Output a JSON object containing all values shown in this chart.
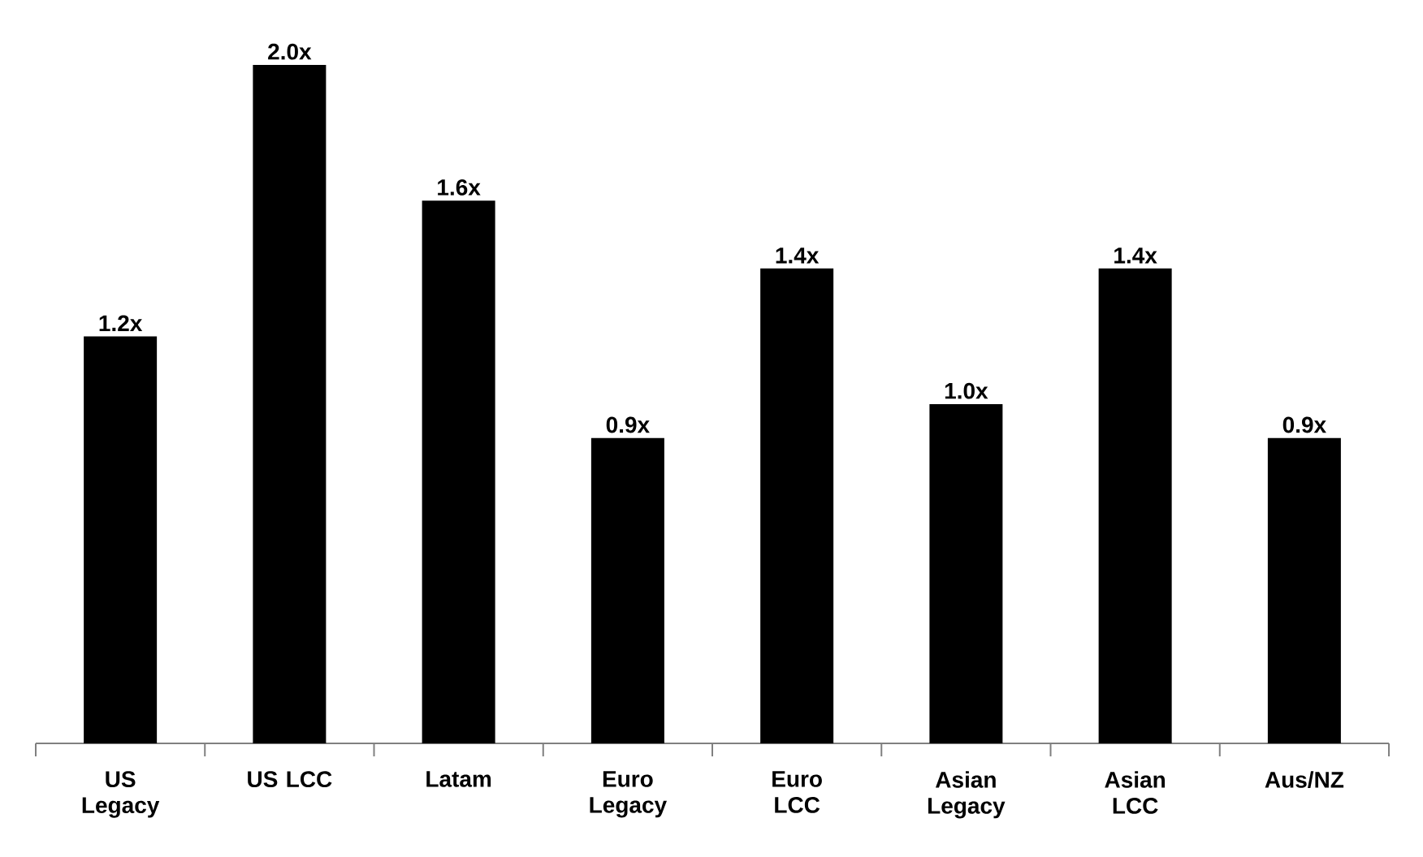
{
  "chart_data": {
    "type": "bar",
    "categories": [
      "US Legacy",
      "US LCC",
      "Latam",
      "Euro Legacy",
      "Euro LCC",
      "Asian Legacy",
      "Asian LCC",
      "Aus/NZ"
    ],
    "values": [
      1.2,
      2.0,
      1.6,
      0.9,
      1.4,
      1.0,
      1.4,
      0.9
    ],
    "value_labels": [
      "1.2x",
      "2.0x",
      "1.6x",
      "0.9x",
      "1.4x",
      "1.0x",
      "1.4x",
      "0.9x"
    ],
    "color": "#000000",
    "ylim": [
      0,
      2.0
    ]
  }
}
